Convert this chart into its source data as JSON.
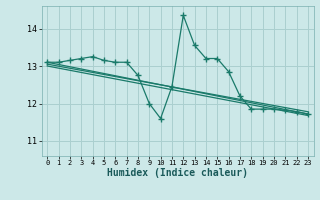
{
  "xlabel": "Humidex (Indice chaleur)",
  "background_color": "#cce8e8",
  "grid_color": "#aacfcf",
  "line_color": "#1a7a6a",
  "xlim": [
    -0.5,
    23.5
  ],
  "ylim": [
    10.6,
    14.6
  ],
  "yticks": [
    11,
    12,
    13,
    14
  ],
  "xticks": [
    0,
    1,
    2,
    3,
    4,
    5,
    6,
    7,
    8,
    9,
    10,
    11,
    12,
    13,
    14,
    15,
    16,
    17,
    18,
    19,
    20,
    21,
    22,
    23
  ],
  "series1_x": [
    0,
    1,
    2,
    3,
    4,
    5,
    6,
    7,
    8,
    9,
    10,
    11,
    12,
    13,
    14,
    15,
    16,
    17,
    18,
    19,
    20,
    21,
    22,
    23
  ],
  "series1_y": [
    13.1,
    13.1,
    13.15,
    13.2,
    13.25,
    13.15,
    13.1,
    13.1,
    12.75,
    12.0,
    11.6,
    12.45,
    14.35,
    13.55,
    13.2,
    13.2,
    12.85,
    12.2,
    11.85,
    11.85,
    11.85,
    11.82,
    11.78,
    11.72
  ],
  "series2_x": [
    0,
    23
  ],
  "series2_y": [
    13.1,
    11.72
  ],
  "series3_x": [
    0,
    23
  ],
  "series3_y": [
    13.05,
    11.78
  ],
  "series4_x": [
    0,
    23
  ],
  "series4_y": [
    13.0,
    11.68
  ]
}
